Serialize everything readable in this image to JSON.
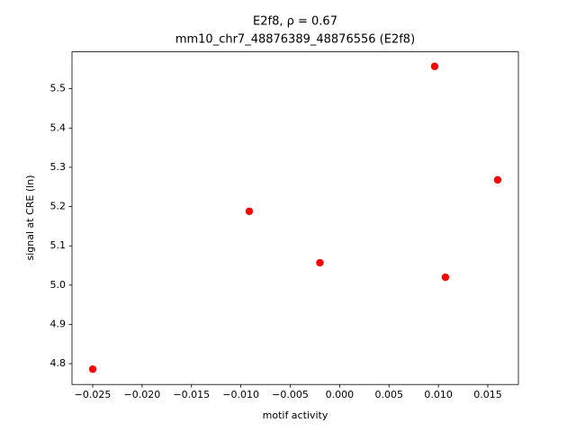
{
  "chart_data": {
    "type": "scatter",
    "title": "E2f8, ρ = 0.67",
    "subtitle": "mm10_chr7_48876389_48876556 (E2f8)",
    "x_label": "motif activity",
    "y_label": "signal at CRE (ln)",
    "color": "#ff0000",
    "x": [
      -0.025,
      -0.00915,
      -0.002,
      0.00962,
      0.01071,
      0.016
    ],
    "values": [
      4.786,
      5.188,
      5.057,
      5.557,
      5.02,
      5.268
    ],
    "xlim": [
      -0.0271,
      0.0181
    ],
    "ylim": [
      4.747,
      5.594
    ],
    "xticks": [
      {
        "value": -0.025,
        "label": "−0.025"
      },
      {
        "value": -0.02,
        "label": "−0.020"
      },
      {
        "value": -0.015,
        "label": "−0.015"
      },
      {
        "value": -0.01,
        "label": "−0.010"
      },
      {
        "value": -0.005,
        "label": "−0.005"
      },
      {
        "value": 0,
        "label": "0.000"
      },
      0.005,
      {
        "value": 0.01,
        "label": "0.010"
      },
      0.015
    ],
    "yticks": [
      4.8,
      4.9,
      {
        "value": 5.0,
        "label": "5.0"
      },
      5.1,
      5.2,
      5.3,
      5.4,
      5.5
    ],
    "grid": false
  }
}
